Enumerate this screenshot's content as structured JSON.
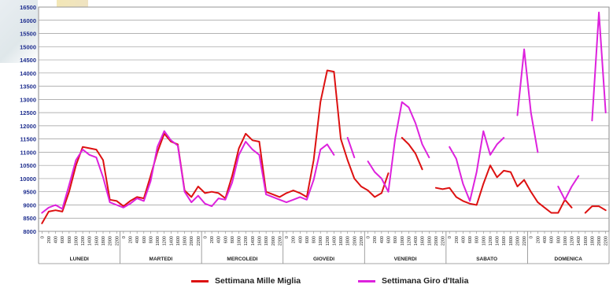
{
  "chart_data": {
    "type": "line",
    "title": "",
    "xlabel": "",
    "ylabel": "",
    "ylim": [
      8000,
      16500
    ],
    "yticks": [
      8000,
      8500,
      9000,
      9500,
      10000,
      10500,
      11000,
      11500,
      12000,
      12500,
      13000,
      13500,
      14000,
      14500,
      15000,
      15500,
      16000,
      16500
    ],
    "days": [
      "LUNEDI",
      "MARTEDI",
      "MERCOLEDI",
      "GIOVEDI",
      "VENERDI",
      "SABATO",
      "DOMENICA"
    ],
    "hour_ticks": [
      "0",
      "200",
      "400",
      "600",
      "800",
      "1000",
      "1200",
      "1400",
      "1600",
      "1800",
      "2000",
      "2200"
    ],
    "legend_position": "bottom",
    "grid": true,
    "series": [
      {
        "name": "Settimana Mille Miglia",
        "color": "#dd1111",
        "days": [
          [
            8300,
            8750,
            8800,
            8750,
            9500,
            10500,
            11200,
            11150,
            11100,
            10700,
            9200,
            9150
          ],
          [
            8950,
            9150,
            9300,
            9250,
            10100,
            11000,
            11700,
            11400,
            11300,
            9550,
            9300,
            9700
          ],
          [
            9450,
            9500,
            9450,
            9250,
            10100,
            11150,
            11700,
            11450,
            11400,
            9500,
            9400,
            9300
          ],
          [
            9450,
            9550,
            9450,
            9300,
            10700,
            12900,
            14100,
            14050,
            11500,
            10700,
            10000,
            9700
          ],
          [
            9550,
            9300,
            9450,
            10200,
            null,
            11550,
            11300,
            10950,
            10350,
            null,
            9650,
            9600
          ],
          [
            9650,
            9300,
            9150,
            9050,
            9000,
            9800,
            10500,
            10050,
            10300,
            10250,
            9700,
            9950
          ],
          [
            9500,
            9100,
            8900,
            8700,
            8700,
            9200,
            8900,
            null,
            8700,
            8950,
            8950,
            8800
          ]
        ]
      },
      {
        "name": "Settimana Giro d'Italia",
        "color": "#dd22dd",
        "days": [
          [
            8700,
            8900,
            9000,
            8850,
            9750,
            10700,
            11100,
            10900,
            10800,
            10050,
            9100,
            9000
          ],
          [
            8900,
            9050,
            9250,
            9150,
            9900,
            11200,
            11800,
            11450,
            11250,
            9500,
            9100,
            9350
          ],
          [
            9050,
            8950,
            9250,
            9200,
            9850,
            10900,
            11400,
            11100,
            10900,
            9400,
            9300,
            9200
          ],
          [
            9100,
            9200,
            9300,
            9200,
            9950,
            11100,
            11300,
            10900,
            null,
            11550,
            10800,
            null
          ],
          [
            10650,
            10250,
            10000,
            9500,
            11500,
            12900,
            12700,
            12100,
            11300,
            10800,
            null,
            null
          ],
          [
            11200,
            10750,
            9800,
            9150,
            10250,
            11800,
            10900,
            11300,
            11550,
            null,
            12400,
            14900
          ],
          [
            12500,
            11000,
            null,
            null,
            9700,
            9200,
            9700,
            10100,
            null,
            12200,
            16300,
            12500
          ]
        ]
      }
    ]
  }
}
